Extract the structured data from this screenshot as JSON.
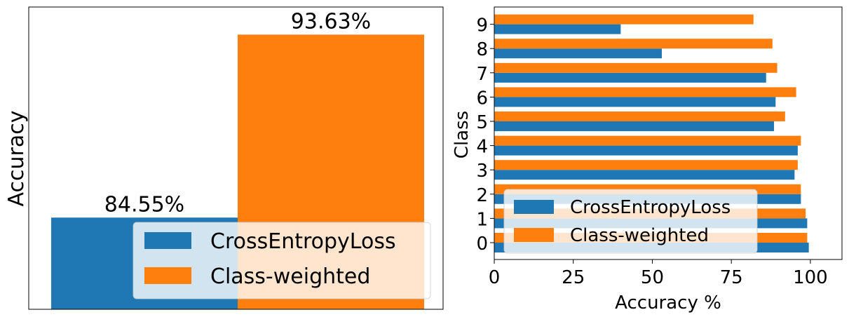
{
  "colors": {
    "cross": "#1f77b4",
    "weighted": "#ff7f0e"
  },
  "legend_labels": [
    "CrossEntropyLoss",
    "Class-weighted"
  ],
  "chart_data": [
    {
      "type": "bar",
      "ylabel": "Accuracy",
      "xlabel": "",
      "ylim": [
        80,
        95
      ],
      "categories": [
        "CrossEntropyLoss",
        "Class-weighted"
      ],
      "values": [
        84.55,
        93.63
      ],
      "data_labels": [
        "84.55%",
        "93.63%"
      ],
      "legend": {
        "position": "lower-right",
        "entries": [
          "CrossEntropyLoss",
          "Class-weighted"
        ]
      },
      "grid": false
    },
    {
      "type": "bar",
      "orientation": "horizontal",
      "xlabel": "Accuracy %",
      "ylabel": "Class",
      "xlim": [
        0,
        110
      ],
      "xticks": [
        0,
        25,
        50,
        75,
        100
      ],
      "categories": [
        "0",
        "1",
        "2",
        "3",
        "4",
        "5",
        "6",
        "7",
        "8",
        "9"
      ],
      "series": [
        {
          "name": "CrossEntropyLoss",
          "values": [
            99.5,
            99,
            97,
            95,
            96,
            88.5,
            89,
            86,
            53,
            40
          ]
        },
        {
          "name": "Class-weighted",
          "values": [
            99,
            98.5,
            97,
            96,
            97,
            92,
            95.5,
            89.5,
            88,
            82
          ]
        }
      ],
      "legend": {
        "position": "lower-left",
        "entries": [
          "CrossEntropyLoss",
          "Class-weighted"
        ]
      },
      "grid": false
    }
  ]
}
